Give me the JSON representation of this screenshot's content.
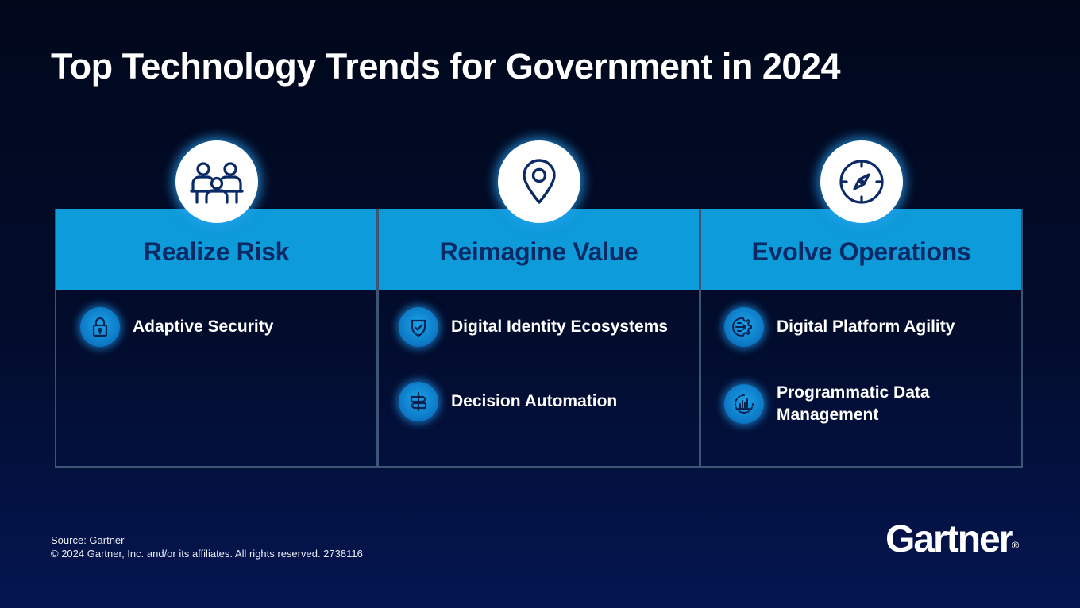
{
  "title": "Top Technology Trends for Government in 2024",
  "columns": [
    {
      "title": "Realize Risk",
      "icon": "people-collaboration-icon",
      "items": [
        {
          "label": "Adaptive Security",
          "icon": "lock-icon"
        }
      ]
    },
    {
      "title": "Reimagine Value",
      "icon": "location-pin-icon",
      "items": [
        {
          "label": "Digital Identity Ecosystems",
          "icon": "shield-check-icon"
        },
        {
          "label": "Decision Automation",
          "icon": "signpost-icon"
        }
      ]
    },
    {
      "title": "Evolve Operations",
      "icon": "compass-icon",
      "items": [
        {
          "label": "Digital Platform Agility",
          "icon": "gear-arrows-icon"
        },
        {
          "label": "Programmatic Data Management",
          "icon": "data-chart-icon"
        }
      ]
    }
  ],
  "footer": {
    "source": "Source: Gartner",
    "copyright": "© 2024 Gartner, Inc. and/or its affiliates. All rights reserved. 2738116"
  },
  "logo": {
    "text": "Gartner",
    "mark": "®"
  },
  "colors": {
    "header_blue": "#0e9bd9",
    "header_text": "#0a2a66",
    "item_icon_blue": "#0c76c4",
    "border": "#3d5575"
  }
}
